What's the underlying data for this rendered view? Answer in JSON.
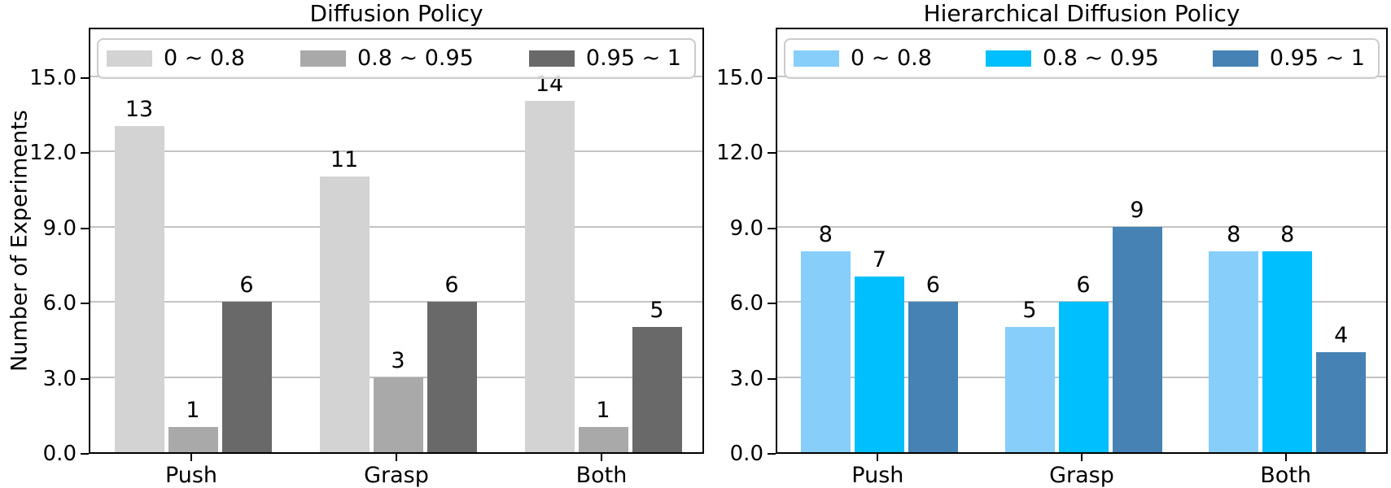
{
  "colors": {
    "background": "#ffffff",
    "grid": "#c3c3c3",
    "spine": "#000000",
    "legend_border": "#cccccc",
    "text": "#000000"
  },
  "chart_data": [
    {
      "type": "bar",
      "title": "Diffusion Policy",
      "ylabel": "Number of Experiments",
      "xlabel": "",
      "categories": [
        "Push",
        "Grasp",
        "Both"
      ],
      "series": [
        {
          "name": "0 ~ 0.8",
          "color": "#d3d3d3",
          "values": [
            13,
            11,
            14
          ]
        },
        {
          "name": "0.8 ~ 0.95",
          "color": "#a9a9a9",
          "values": [
            1,
            3,
            1
          ]
        },
        {
          "name": "0.95 ~ 1",
          "color": "#696969",
          "values": [
            6,
            6,
            5
          ]
        }
      ],
      "ylim": [
        0,
        17
      ],
      "yticks": [
        0,
        3,
        6,
        9,
        12,
        15
      ],
      "ytick_labels": [
        "0.0",
        "3.0",
        "6.0",
        "9.0",
        "12.0",
        "15.0"
      ],
      "grid": true,
      "bar_value_labels": true,
      "legend_position": "upper center, expanded full width"
    },
    {
      "type": "bar",
      "title": "Hierarchical Diffusion Policy",
      "ylabel": "",
      "xlabel": "",
      "categories": [
        "Push",
        "Grasp",
        "Both"
      ],
      "series": [
        {
          "name": "0 ~ 0.8",
          "color": "#87cefa",
          "values": [
            8,
            5,
            8
          ]
        },
        {
          "name": "0.8 ~ 0.95",
          "color": "#00bfff",
          "values": [
            7,
            6,
            8
          ]
        },
        {
          "name": "0.95 ~ 1",
          "color": "#4682b4",
          "values": [
            6,
            9,
            4
          ]
        }
      ],
      "ylim": [
        0,
        17
      ],
      "yticks": [
        0,
        3,
        6,
        9,
        12,
        15
      ],
      "ytick_labels": [
        "0.0",
        "3.0",
        "6.0",
        "9.0",
        "12.0",
        "15.0"
      ],
      "grid": true,
      "bar_value_labels": true,
      "legend_position": "upper center, expanded full width"
    }
  ]
}
